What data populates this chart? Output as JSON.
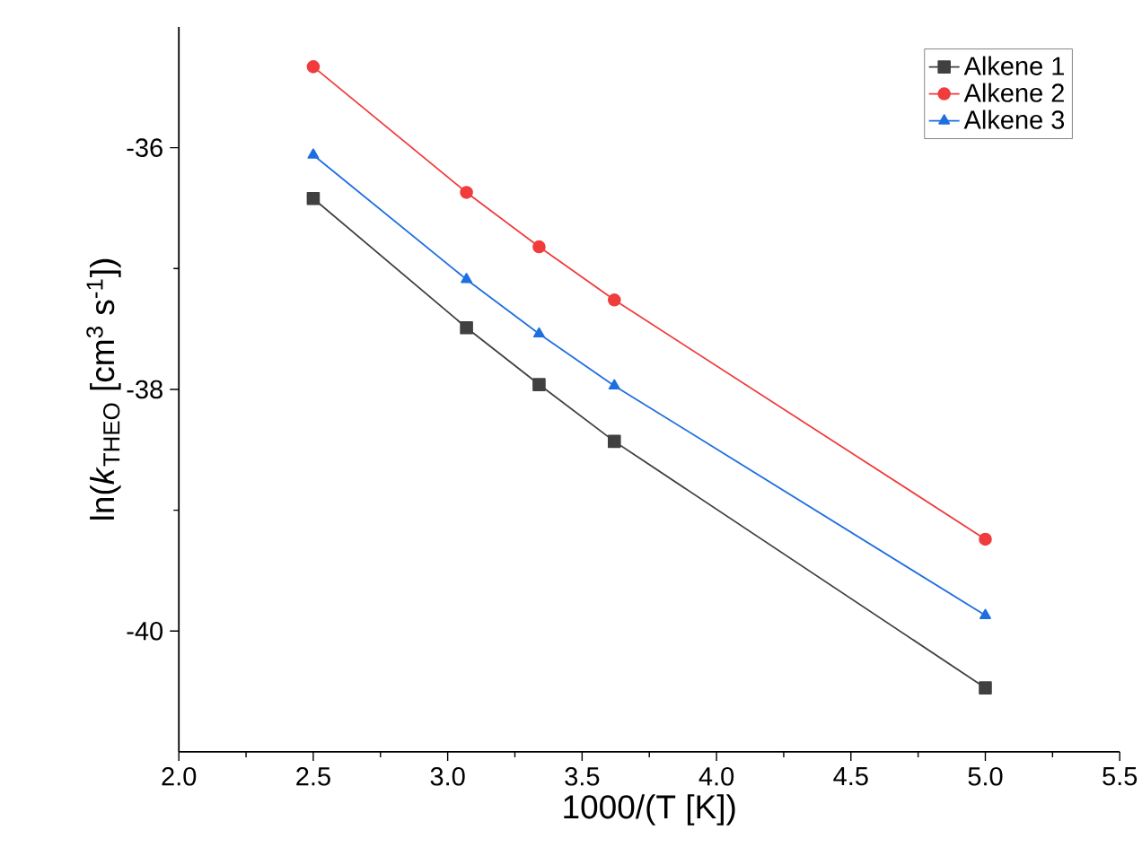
{
  "chart_data": {
    "type": "line",
    "xlabel": "1000/(T [K])",
    "ylabel": "ln(*k*$_{THEO}$ [cm$^{3}$ s$^{-1}$])",
    "x": [
      2.5,
      3.07,
      3.34,
      3.62,
      5.0
    ],
    "series": [
      {
        "name": "Alkene 1",
        "color": "#404040",
        "marker": "square",
        "values": [
          -36.42,
          -37.49,
          -37.96,
          -38.43,
          -40.47
        ]
      },
      {
        "name": "Alkene 2",
        "color": "#f03c3c",
        "marker": "circle",
        "values": [
          -35.33,
          -36.37,
          -36.82,
          -37.26,
          -39.24
        ]
      },
      {
        "name": "Alkene 3",
        "color": "#1f6fe0",
        "marker": "triangle",
        "values": [
          -36.06,
          -37.09,
          -37.54,
          -37.97,
          -39.87
        ]
      }
    ],
    "xlim": [
      2.0,
      5.5
    ],
    "ylim": [
      -41,
      -35
    ],
    "xticks": [
      {
        "value": 2.0,
        "label": "2.0"
      },
      {
        "value": 2.5,
        "label": "2.5"
      },
      {
        "value": 3.0,
        "label": "3.0"
      },
      {
        "value": 3.5,
        "label": "3.5"
      },
      {
        "value": 4.0,
        "label": "4.0"
      },
      {
        "value": 4.5,
        "label": "4.5"
      },
      {
        "value": 5.0,
        "label": "5.0"
      },
      {
        "value": 5.5,
        "label": "5.5"
      }
    ],
    "yticks": [
      -36,
      -38,
      -40
    ],
    "legend": "top right",
    "line_style": "solid",
    "grid": false
  }
}
